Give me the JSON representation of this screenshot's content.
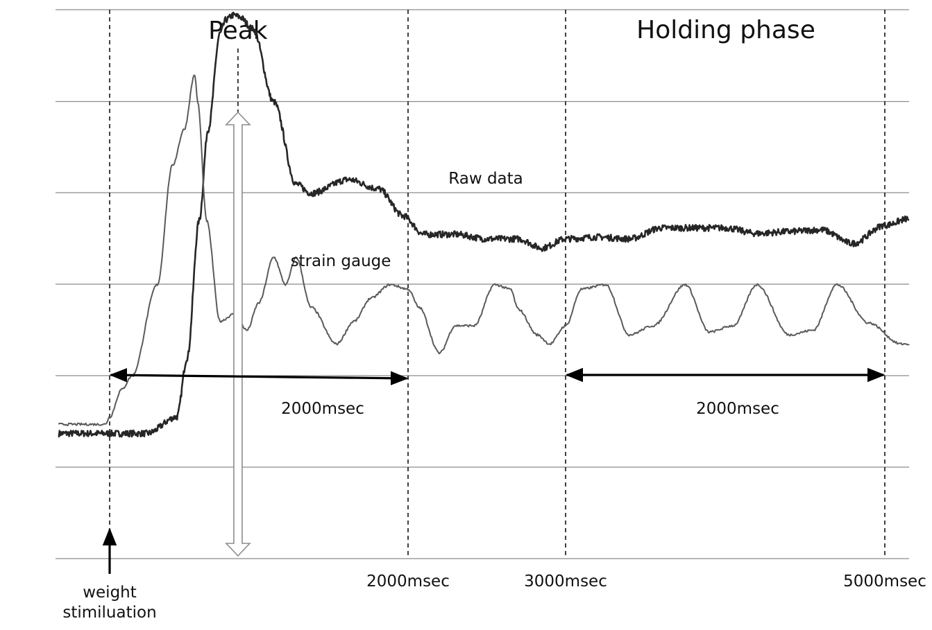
{
  "chart_data": {
    "type": "line",
    "title": "",
    "xlabel": "",
    "ylabel": "",
    "grid": true,
    "phase_labels": {
      "peak": "Peak",
      "holding": "Holding phase"
    },
    "markers": [
      {
        "time": 0,
        "label": "weight\nstimiluation"
      },
      {
        "time": 2000,
        "label": "2000msec"
      },
      {
        "time": 3000,
        "label": "3000msec"
      },
      {
        "time": 5000,
        "label": "5000msec"
      }
    ],
    "peak_time": 860,
    "intervals": [
      {
        "from": 0,
        "to": 2000,
        "label": "2000msec"
      },
      {
        "from": 3000,
        "to": 5000,
        "label": "2000msec"
      }
    ],
    "series": [
      {
        "name": "Raw data",
        "color": "#262626",
        "x": [
          -340,
          -20,
          250,
          450,
          520,
          600,
          660,
          740,
          780,
          830,
          870,
          960,
          1100,
          1250,
          1350,
          1600,
          1800,
          1970,
          2100,
          2300,
          2500,
          2700,
          2850,
          3000,
          3200,
          3400,
          3600,
          3800,
          4000,
          4200,
          4400,
          4600,
          4800,
          5000,
          5150
        ],
        "values": [
          1.37,
          1.37,
          1.37,
          1.55,
          2.2,
          3.7,
          4.7,
          5.75,
          5.9,
          5.95,
          5.93,
          5.8,
          5.0,
          4.1,
          4.0,
          4.15,
          4.05,
          3.75,
          3.55,
          3.55,
          3.5,
          3.5,
          3.4,
          3.5,
          3.52,
          3.5,
          3.62,
          3.62,
          3.62,
          3.56,
          3.58,
          3.6,
          3.45,
          3.65,
          3.72
        ]
      },
      {
        "name": "strain gauge",
        "color": "#5a5a5a",
        "x": [
          -340,
          -30,
          0,
          80,
          150,
          320,
          420,
          500,
          570,
          590,
          650,
          740,
          840,
          920,
          1000,
          1100,
          1180,
          1250,
          1350,
          1520,
          1640,
          1750,
          1880,
          2000,
          2070,
          2200,
          2300,
          2420,
          2550,
          2650,
          2700,
          2820,
          2900,
          3000,
          3100,
          3250,
          3400,
          3550,
          3750,
          3900,
          4050,
          4200,
          4400,
          4550,
          4700,
          4900,
          5100,
          5150
        ],
        "values": [
          1.47,
          1.47,
          1.55,
          1.85,
          2.0,
          3.0,
          4.3,
          4.7,
          5.3,
          5.0,
          3.7,
          2.6,
          2.68,
          2.5,
          2.8,
          3.3,
          3.0,
          3.3,
          2.75,
          2.35,
          2.6,
          2.85,
          3.0,
          2.95,
          2.75,
          2.25,
          2.55,
          2.55,
          3.0,
          2.95,
          2.73,
          2.45,
          2.35,
          2.55,
          2.95,
          3.0,
          2.45,
          2.55,
          3.0,
          2.48,
          2.55,
          3.0,
          2.45,
          2.5,
          3.0,
          2.58,
          2.35,
          2.35
        ]
      }
    ]
  }
}
